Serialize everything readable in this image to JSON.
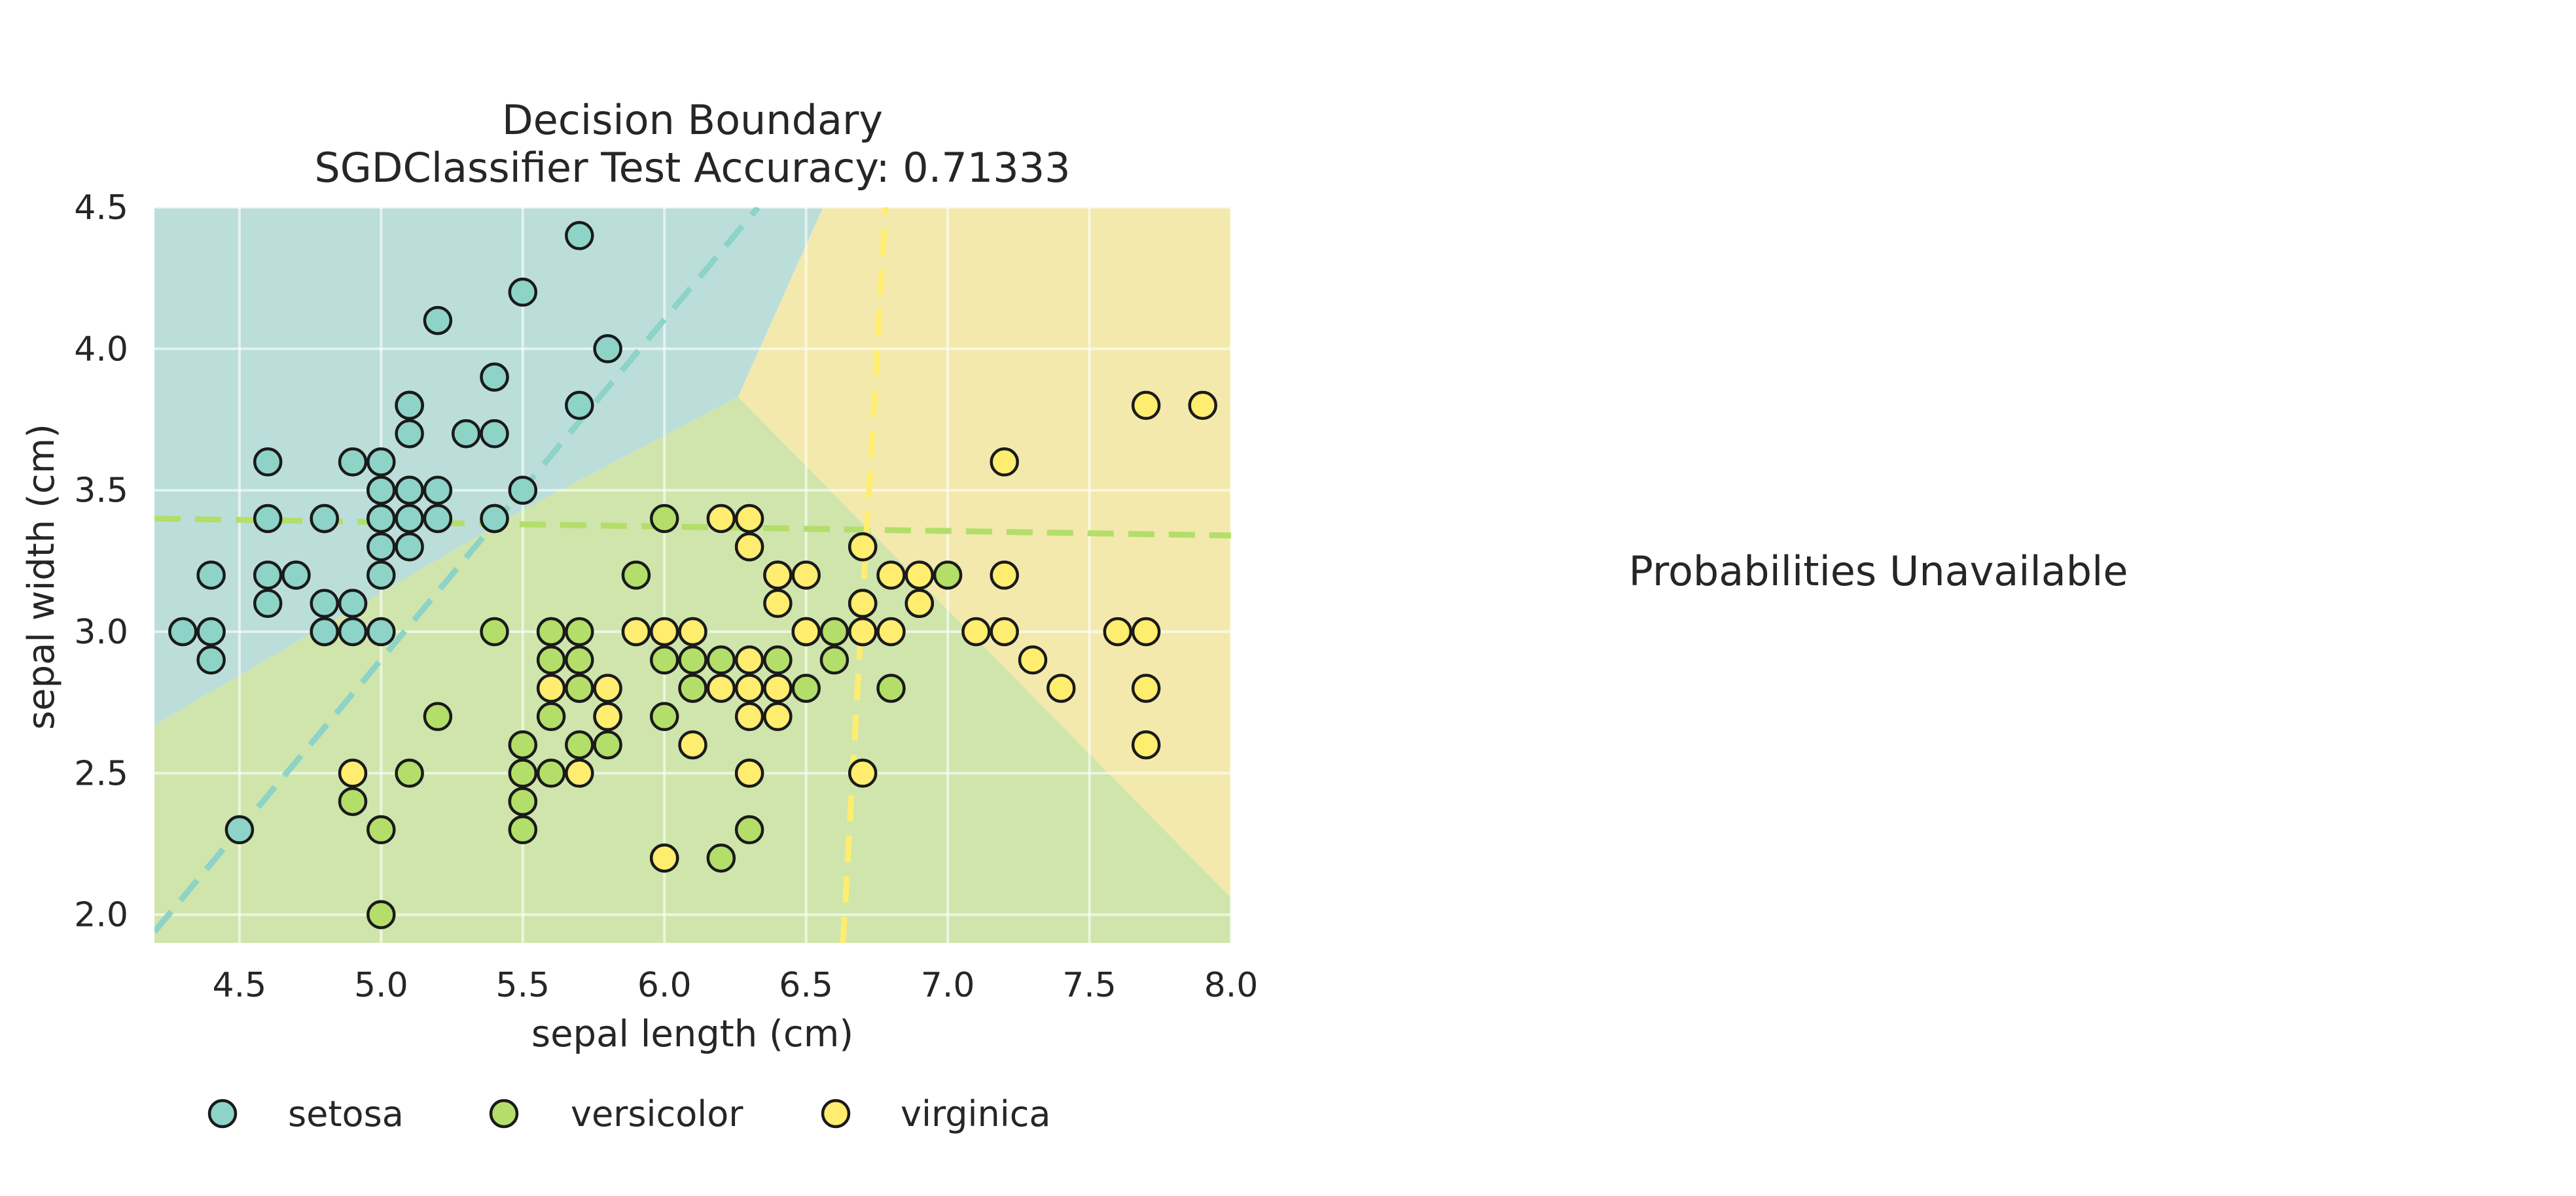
{
  "panel_text": "Probabilities Unavailable",
  "chart_data": {
    "type": "scatter",
    "title": "Decision Boundary",
    "subtitle": "SGDClassifier Test Accuracy: 0.71333",
    "xlabel": "sepal length (cm)",
    "ylabel": "sepal width (cm)",
    "xlim": [
      4.2,
      8.0
    ],
    "ylim": [
      1.9,
      4.5
    ],
    "xticks": [
      "4.5",
      "5.0",
      "5.5",
      "6.0",
      "6.5",
      "7.0",
      "7.5",
      "8.0"
    ],
    "yticks": [
      "2.0",
      "2.5",
      "3.0",
      "3.5",
      "4.0",
      "4.5"
    ],
    "grid": true,
    "legend_position": "bottom",
    "colors": {
      "setosa": "#8dd3c7",
      "versicolor": "#b3de69",
      "virginica": "#ffed6f",
      "region_setosa": "#bbdedb",
      "region_versicolor": "#cfe5ac",
      "region_virginica": "#f3e9ad"
    },
    "regions": [
      {
        "class": "setosa",
        "polygon": [
          [
            4.2,
            2.67
          ],
          [
            5.5,
            3.43
          ],
          [
            6.26,
            3.83
          ],
          [
            6.56,
            4.5
          ],
          [
            4.2,
            4.5
          ]
        ]
      },
      {
        "class": "versicolor",
        "polygon": [
          [
            4.2,
            1.9
          ],
          [
            8.0,
            1.9
          ],
          [
            8.0,
            2.06
          ],
          [
            6.26,
            3.83
          ],
          [
            5.5,
            3.43
          ],
          [
            4.2,
            2.67
          ]
        ]
      },
      {
        "class": "virginica",
        "polygon": [
          [
            6.26,
            3.83
          ],
          [
            8.0,
            2.06
          ],
          [
            8.0,
            4.5
          ],
          [
            6.56,
            4.5
          ]
        ]
      }
    ],
    "boundary_lines": [
      {
        "class": "setosa",
        "points": [
          [
            4.2,
            1.94
          ],
          [
            6.33,
            4.5
          ]
        ]
      },
      {
        "class": "versicolor",
        "points": [
          [
            4.2,
            3.4
          ],
          [
            8.0,
            3.34
          ]
        ]
      },
      {
        "class": "virginica",
        "points": [
          [
            6.63,
            1.9
          ],
          [
            6.78,
            4.5
          ]
        ]
      }
    ],
    "series": [
      {
        "name": "setosa",
        "points": [
          [
            5.1,
            3.5
          ],
          [
            4.9,
            3.0
          ],
          [
            4.7,
            3.2
          ],
          [
            4.6,
            3.1
          ],
          [
            5.0,
            3.6
          ],
          [
            5.4,
            3.9
          ],
          [
            4.6,
            3.4
          ],
          [
            5.0,
            3.4
          ],
          [
            4.4,
            2.9
          ],
          [
            4.9,
            3.1
          ],
          [
            5.4,
            3.7
          ],
          [
            4.8,
            3.4
          ],
          [
            4.8,
            3.0
          ],
          [
            4.3,
            3.0
          ],
          [
            5.8,
            4.0
          ],
          [
            5.7,
            4.4
          ],
          [
            5.4,
            3.9
          ],
          [
            5.1,
            3.5
          ],
          [
            5.7,
            3.8
          ],
          [
            5.1,
            3.8
          ],
          [
            5.4,
            3.4
          ],
          [
            5.1,
            3.7
          ],
          [
            4.6,
            3.6
          ],
          [
            5.1,
            3.3
          ],
          [
            4.8,
            3.4
          ],
          [
            5.0,
            3.0
          ],
          [
            5.0,
            3.4
          ],
          [
            5.2,
            3.5
          ],
          [
            5.2,
            3.4
          ],
          [
            4.7,
            3.2
          ],
          [
            4.8,
            3.1
          ],
          [
            5.4,
            3.4
          ],
          [
            5.2,
            4.1
          ],
          [
            5.5,
            4.2
          ],
          [
            4.9,
            3.1
          ],
          [
            5.0,
            3.2
          ],
          [
            5.5,
            3.5
          ],
          [
            4.9,
            3.6
          ],
          [
            4.4,
            3.0
          ],
          [
            5.1,
            3.4
          ],
          [
            5.0,
            3.5
          ],
          [
            4.5,
            2.3
          ],
          [
            4.4,
            3.2
          ],
          [
            5.0,
            3.5
          ],
          [
            5.1,
            3.8
          ],
          [
            4.8,
            3.0
          ],
          [
            5.1,
            3.8
          ],
          [
            4.6,
            3.2
          ],
          [
            5.3,
            3.7
          ],
          [
            5.0,
            3.3
          ]
        ]
      },
      {
        "name": "versicolor",
        "points": [
          [
            7.0,
            3.2
          ],
          [
            6.4,
            3.2
          ],
          [
            6.9,
            3.1
          ],
          [
            5.5,
            2.3
          ],
          [
            6.5,
            2.8
          ],
          [
            5.7,
            2.8
          ],
          [
            6.3,
            3.3
          ],
          [
            4.9,
            2.4
          ],
          [
            6.6,
            2.9
          ],
          [
            5.2,
            2.7
          ],
          [
            5.0,
            2.0
          ],
          [
            5.9,
            3.0
          ],
          [
            6.0,
            2.2
          ],
          [
            6.1,
            2.9
          ],
          [
            5.6,
            2.9
          ],
          [
            6.7,
            3.1
          ],
          [
            5.6,
            3.0
          ],
          [
            5.8,
            2.7
          ],
          [
            6.2,
            2.2
          ],
          [
            5.6,
            2.5
          ],
          [
            5.9,
            3.2
          ],
          [
            6.1,
            2.8
          ],
          [
            6.3,
            2.5
          ],
          [
            6.1,
            2.8
          ],
          [
            6.4,
            2.9
          ],
          [
            6.6,
            3.0
          ],
          [
            6.8,
            2.8
          ],
          [
            6.7,
            3.0
          ],
          [
            6.0,
            2.9
          ],
          [
            5.7,
            2.6
          ],
          [
            5.5,
            2.4
          ],
          [
            5.5,
            2.4
          ],
          [
            5.8,
            2.7
          ],
          [
            6.0,
            2.7
          ],
          [
            5.4,
            3.0
          ],
          [
            6.0,
            3.4
          ],
          [
            6.7,
            3.1
          ],
          [
            6.3,
            2.3
          ],
          [
            5.6,
            3.0
          ],
          [
            5.5,
            2.5
          ],
          [
            5.5,
            2.6
          ],
          [
            6.1,
            3.0
          ],
          [
            5.8,
            2.6
          ],
          [
            5.0,
            2.3
          ],
          [
            5.6,
            2.7
          ],
          [
            5.7,
            3.0
          ],
          [
            5.7,
            2.9
          ],
          [
            6.2,
            2.9
          ],
          [
            5.1,
            2.5
          ],
          [
            5.7,
            2.8
          ]
        ]
      },
      {
        "name": "virginica",
        "points": [
          [
            6.3,
            3.3
          ],
          [
            5.8,
            2.7
          ],
          [
            7.1,
            3.0
          ],
          [
            6.3,
            2.9
          ],
          [
            6.5,
            3.0
          ],
          [
            7.6,
            3.0
          ],
          [
            4.9,
            2.5
          ],
          [
            7.3,
            2.9
          ],
          [
            6.7,
            2.5
          ],
          [
            7.2,
            3.6
          ],
          [
            6.5,
            3.2
          ],
          [
            6.4,
            2.7
          ],
          [
            6.8,
            3.0
          ],
          [
            5.7,
            2.5
          ],
          [
            5.8,
            2.8
          ],
          [
            6.4,
            3.2
          ],
          [
            6.5,
            3.0
          ],
          [
            7.7,
            3.8
          ],
          [
            7.7,
            2.6
          ],
          [
            6.0,
            2.2
          ],
          [
            6.9,
            3.2
          ],
          [
            5.6,
            2.8
          ],
          [
            7.7,
            2.8
          ],
          [
            6.3,
            2.7
          ],
          [
            6.7,
            3.3
          ],
          [
            7.2,
            3.2
          ],
          [
            6.2,
            2.8
          ],
          [
            6.1,
            3.0
          ],
          [
            6.4,
            2.8
          ],
          [
            7.2,
            3.0
          ],
          [
            7.4,
            2.8
          ],
          [
            7.9,
            3.8
          ],
          [
            6.4,
            2.8
          ],
          [
            6.3,
            2.8
          ],
          [
            6.1,
            2.6
          ],
          [
            7.7,
            3.0
          ],
          [
            6.3,
            3.4
          ],
          [
            6.4,
            3.1
          ],
          [
            6.0,
            3.0
          ],
          [
            6.9,
            3.1
          ],
          [
            6.7,
            3.1
          ],
          [
            6.9,
            3.1
          ],
          [
            5.8,
            2.7
          ],
          [
            6.8,
            3.2
          ],
          [
            6.7,
            3.3
          ],
          [
            6.7,
            3.0
          ],
          [
            6.3,
            2.5
          ],
          [
            6.5,
            3.0
          ],
          [
            6.2,
            3.4
          ],
          [
            5.9,
            3.0
          ]
        ]
      }
    ]
  }
}
